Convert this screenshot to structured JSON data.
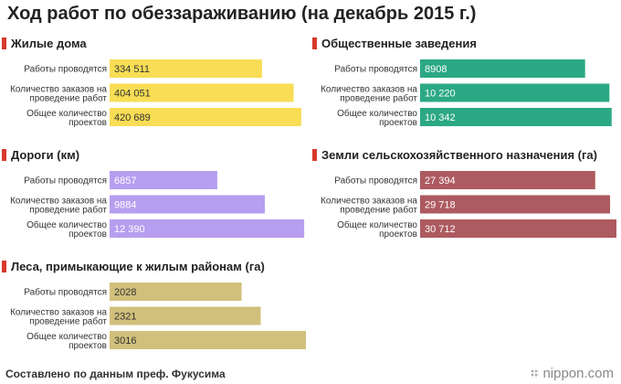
{
  "title": "Ход работ по обеззараживанию (на декабрь 2015 г.)",
  "footer": "Составлено по данным преф. Фукусима",
  "logo": "nippon.com",
  "chart_data": [
    {
      "type": "bar",
      "title": "Жилые дома",
      "color": "#f8dd55",
      "categories": [
        "Работы проводятся",
        "Количество заказов на проведение работ",
        "Общее количество проектов"
      ],
      "category_lines": [
        [
          "Работы проводятся"
        ],
        [
          "Количество заказов на",
          "проведение работ"
        ],
        [
          "Общее количество",
          "проектов"
        ]
      ],
      "values": [
        334511,
        404051,
        420689
      ],
      "value_labels": [
        "334 511",
        "404 051",
        "420 689"
      ],
      "xlim": [
        0,
        431000
      ]
    },
    {
      "type": "bar",
      "title": "Общественные заведения",
      "color": "#2ba884",
      "categories": [
        "Работы проводятся",
        "Количество заказов на проведение работ",
        "Общее количество проектов"
      ],
      "category_lines": [
        [
          "Работы проводятся"
        ],
        [
          "Количество заказов на",
          "проведение работ"
        ],
        [
          "Общее количество",
          "проектов"
        ]
      ],
      "values": [
        8908,
        10220,
        10342
      ],
      "value_labels": [
        "8908",
        "10 220",
        "10 342"
      ],
      "xlim": [
        0,
        10600
      ]
    },
    {
      "type": "bar",
      "title": "Дороги (км)",
      "color": "#b79ef0",
      "categories": [
        "Работы проводятся",
        "Количество заказов на проведение работ",
        "Общее количество проектов"
      ],
      "category_lines": [
        [
          "Работы проводятся"
        ],
        [
          "Количество заказов на",
          "проведение работ"
        ],
        [
          "Общее количество",
          "проектов"
        ]
      ],
      "values": [
        6857,
        9884,
        12390
      ],
      "value_labels": [
        "6857",
        "9884",
        "12 390"
      ],
      "xlim": [
        0,
        12500
      ]
    },
    {
      "type": "bar",
      "title": "Земли сельскохозяйственного назначения (га)",
      "color": "#ad5a60",
      "categories": [
        "Работы проводятся",
        "Количество заказов на проведение работ",
        "Общее количество проектов"
      ],
      "category_lines": [
        [
          "Работы проводятся"
        ],
        [
          "Количество заказов на",
          "проведение работ"
        ],
        [
          "Общее количество",
          "проектов"
        ]
      ],
      "values": [
        27394,
        29718,
        30712
      ],
      "value_labels": [
        "27 394",
        "29 718",
        "30 712"
      ],
      "xlim": [
        0,
        30712
      ]
    },
    {
      "type": "bar",
      "title": "Леса, примыкающие к жилым районам (га)",
      "color": "#d1c07b",
      "categories": [
        "Работы проводятся",
        "Количество заказов на проведение работ",
        "Общее количество проектов"
      ],
      "category_lines": [
        [
          "Работы проводятся"
        ],
        [
          "Количество заказов на",
          "проведение работ"
        ],
        [
          "Общее количество",
          "проектов"
        ]
      ],
      "values": [
        2028,
        2321,
        3016
      ],
      "value_labels": [
        "2028",
        "2321",
        "3016"
      ],
      "xlim": [
        0,
        3016
      ]
    }
  ]
}
